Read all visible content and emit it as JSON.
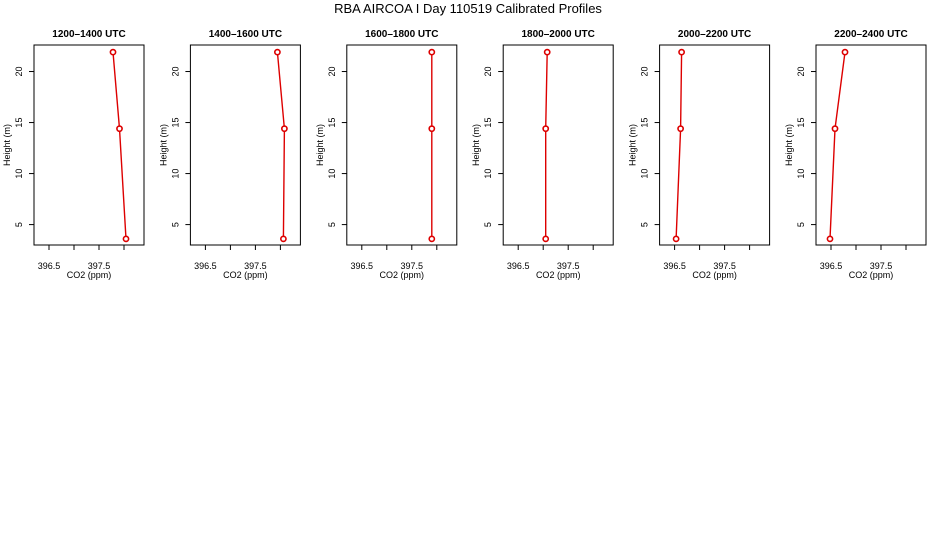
{
  "title": "RBA AIRCOA I  Day 110519  Calibrated Profiles",
  "colors": {
    "series": "#dd0000",
    "axis": "#000000"
  },
  "chart_data": [
    {
      "type": "line",
      "title": "1200–1400 UTC",
      "xlabel": "CO2 (ppm)",
      "ylabel": "Height (m)",
      "xlim": [
        396.2,
        398.4
      ],
      "ylim": [
        3,
        22.6
      ],
      "xticks": [
        396.5,
        397,
        397.5,
        398
      ],
      "xtick_labels": [
        "396.5",
        "",
        "397.5",
        ""
      ],
      "yticks": [
        5,
        10,
        15,
        20
      ],
      "ytick_labels": [
        "5",
        "10",
        "15",
        "20"
      ],
      "x": [
        398.04,
        397.91,
        397.78
      ],
      "y": [
        3.6,
        14.4,
        21.9
      ]
    },
    {
      "type": "line",
      "title": "1400–1600 UTC",
      "xlabel": "CO2 (ppm)",
      "ylabel": "Height (m)",
      "xlim": [
        396.2,
        398.4
      ],
      "ylim": [
        3,
        22.6
      ],
      "xticks": [
        396.5,
        397,
        397.5,
        398
      ],
      "xtick_labels": [
        "396.5",
        "",
        "397.5",
        ""
      ],
      "yticks": [
        5,
        10,
        15,
        20
      ],
      "ytick_labels": [
        "5",
        "10",
        "15",
        "20"
      ],
      "x": [
        398.06,
        398.08,
        397.94
      ],
      "y": [
        3.6,
        14.4,
        21.9
      ]
    },
    {
      "type": "line",
      "title": "1600–1800 UTC",
      "xlabel": "CO2 (ppm)",
      "ylabel": "Height (m)",
      "xlim": [
        396.2,
        398.4
      ],
      "ylim": [
        3,
        22.6
      ],
      "xticks": [
        396.5,
        397,
        397.5,
        398
      ],
      "xtick_labels": [
        "396.5",
        "",
        "397.5",
        ""
      ],
      "yticks": [
        5,
        10,
        15,
        20
      ],
      "ytick_labels": [
        "5",
        "10",
        "15",
        "20"
      ],
      "x": [
        397.9,
        397.9,
        397.9
      ],
      "y": [
        3.6,
        14.4,
        21.9
      ]
    },
    {
      "type": "line",
      "title": "1800–2000 UTC",
      "xlabel": "CO2 (ppm)",
      "ylabel": "Height (m)",
      "xlim": [
        396.2,
        398.4
      ],
      "ylim": [
        3,
        22.6
      ],
      "xticks": [
        396.5,
        397,
        397.5,
        398
      ],
      "xtick_labels": [
        "396.5",
        "",
        "397.5",
        ""
      ],
      "yticks": [
        5,
        10,
        15,
        20
      ],
      "ytick_labels": [
        "5",
        "10",
        "15",
        "20"
      ],
      "x": [
        397.05,
        397.05,
        397.08
      ],
      "y": [
        3.6,
        14.4,
        21.9
      ]
    },
    {
      "type": "line",
      "title": "2000–2200 UTC",
      "xlabel": "CO2 (ppm)",
      "ylabel": "Height (m)",
      "xlim": [
        396.2,
        398.4
      ],
      "ylim": [
        3,
        22.6
      ],
      "xticks": [
        396.5,
        397,
        397.5,
        398
      ],
      "xtick_labels": [
        "396.5",
        "",
        "397.5",
        ""
      ],
      "yticks": [
        5,
        10,
        15,
        20
      ],
      "ytick_labels": [
        "5",
        "10",
        "15",
        "20"
      ],
      "x": [
        396.53,
        396.62,
        396.64
      ],
      "y": [
        3.6,
        14.4,
        21.9
      ]
    },
    {
      "type": "line",
      "title": "2200–2400 UTC",
      "xlabel": "CO2 (ppm)",
      "ylabel": "Height (m)",
      "xlim": [
        396.2,
        398.4
      ],
      "ylim": [
        3,
        22.6
      ],
      "xticks": [
        396.5,
        397,
        397.5,
        398
      ],
      "xtick_labels": [
        "396.5",
        "",
        "397.5",
        ""
      ],
      "yticks": [
        5,
        10,
        15,
        20
      ],
      "ytick_labels": [
        "5",
        "10",
        "15",
        "20"
      ],
      "x": [
        396.48,
        396.58,
        396.78
      ],
      "y": [
        3.6,
        14.4,
        21.9
      ]
    }
  ]
}
